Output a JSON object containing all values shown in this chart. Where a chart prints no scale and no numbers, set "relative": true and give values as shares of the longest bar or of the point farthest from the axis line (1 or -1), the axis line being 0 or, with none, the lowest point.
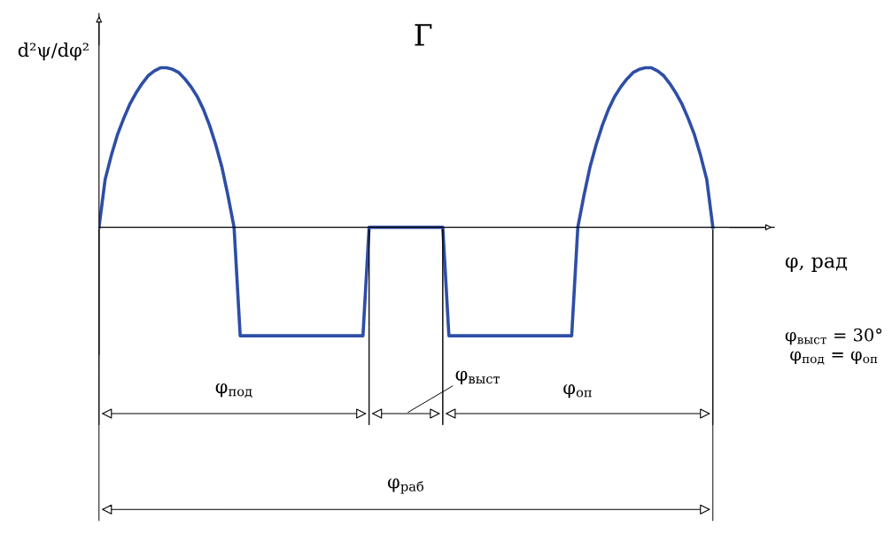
{
  "chart_data": {
    "type": "line",
    "title": "Г",
    "ylabel": "d²ψ/dφ²",
    "xlabel": "φ, рад",
    "relative": true,
    "grid": false,
    "legend": false,
    "marker": "none",
    "line_style": "solid",
    "categories": [
      null,
      null,
      null,
      null,
      null,
      null,
      null,
      null,
      null,
      null,
      null,
      null,
      null,
      null,
      null,
      null,
      null,
      null,
      null,
      null,
      null,
      null,
      null,
      null,
      null,
      null,
      null,
      null,
      null,
      null,
      null,
      null,
      null,
      null,
      null,
      null,
      null,
      null,
      null,
      null,
      null,
      null,
      null,
      null,
      null,
      null,
      null,
      null,
      null,
      null,
      null,
      null,
      null,
      null,
      null,
      null,
      null,
      null,
      null,
      null,
      null,
      null,
      null,
      null,
      null,
      null,
      null,
      null,
      null,
      null,
      null,
      null,
      null,
      null,
      null,
      null,
      null,
      null,
      null,
      null,
      null,
      null,
      null,
      null,
      null,
      null,
      null,
      null,
      null,
      null,
      null,
      null,
      null,
      null,
      null,
      null,
      null,
      null,
      null,
      null,
      null
    ],
    "series": [
      {
        "color": "#2e4ea6",
        "values": [
          0,
          0.3,
          0.45,
          0.58,
          0.68,
          0.77,
          0.84,
          0.9,
          0.95,
          0.98,
          1.0,
          1.0,
          0.99,
          0.97,
          0.93,
          0.88,
          0.82,
          0.74,
          0.64,
          0.52,
          0.38,
          0.2,
          0,
          -0.68,
          -0.68,
          -0.68,
          -0.68,
          -0.68,
          -0.68,
          -0.68,
          -0.68,
          -0.68,
          -0.68,
          -0.68,
          -0.68,
          -0.68,
          -0.68,
          -0.68,
          -0.68,
          -0.68,
          -0.68,
          -0.68,
          -0.68,
          -0.68,
          0,
          0,
          0,
          0,
          0,
          0,
          0,
          0,
          0,
          0,
          0,
          0,
          0,
          -0.68,
          -0.68,
          -0.68,
          -0.68,
          -0.68,
          -0.68,
          -0.68,
          -0.68,
          -0.68,
          -0.68,
          -0.68,
          -0.68,
          -0.68,
          -0.68,
          -0.68,
          -0.68,
          -0.68,
          -0.68,
          -0.68,
          -0.68,
          -0.68,
          0,
          0.2,
          0.38,
          0.52,
          0.64,
          0.74,
          0.82,
          0.88,
          0.93,
          0.97,
          0.99,
          1.0,
          1.0,
          0.98,
          0.95,
          0.9,
          0.84,
          0.77,
          0.68,
          0.58,
          0.45,
          0.3,
          0
        ]
      }
    ],
    "annotations": [
      "φ$_{под}$",
      "φ$_{выст}$",
      "φ$_{оп}$",
      "φ$_{раб}$",
      "φ$_{выст}$ = 30°",
      "φ$_{под}$ = φ$_{оп}$"
    ]
  }
}
